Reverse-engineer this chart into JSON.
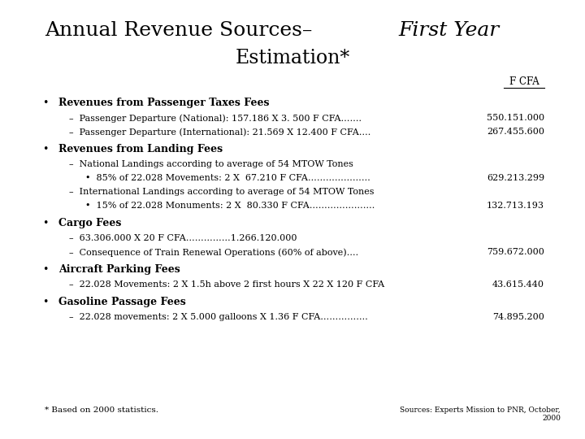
{
  "bg_color": "#ffffff",
  "text_color": "#000000",
  "fcfa_label": "F CFA",
  "sections": [
    {
      "heading": "Revenues from Passenger Taxes Fees",
      "items": [
        {
          "indent": 1,
          "text": "–  Passenger Departure (National): 157.186 X 3. 500 F CFA…….",
          "value": "550.151.000"
        },
        {
          "indent": 1,
          "text": "–  Passenger Departure (International): 21.569 X 12.400 F CFA….",
          "value": "267.455.600"
        }
      ]
    },
    {
      "heading": "Revenues from Landing Fees",
      "items": [
        {
          "indent": 1,
          "text": "–  National Landings according to average of 54 MTOW Tones",
          "value": ""
        },
        {
          "indent": 2,
          "text": "•  85% of 22.028 Movements: 2 X  67.210 F CFA…………………",
          "value": "629.213.299"
        },
        {
          "indent": 1,
          "text": "–  International Landings according to average of 54 MTOW Tones",
          "value": ""
        },
        {
          "indent": 2,
          "text": "•  15% of 22.028 Monuments: 2 X  80.330 F CFA………………….",
          "value": "132.713.193"
        }
      ]
    },
    {
      "heading": "Cargo Fees",
      "items": [
        {
          "indent": 1,
          "text": "–  63.306.000 X 20 F CFA……………1.266.120.000",
          "value": ""
        },
        {
          "indent": 1,
          "text": "–  Consequence of Train Renewal Operations (60% of above)….",
          "value": "759.672.000"
        }
      ]
    },
    {
      "heading": "Aircraft Parking Fees",
      "items": [
        {
          "indent": 1,
          "text": "–  22.028 Movements: 2 X 1.5h above 2 first hours X 22 X 120 F CFA",
          "value": "43.615.440"
        }
      ]
    },
    {
      "heading": "Gasoline Passage Fees",
      "items": [
        {
          "indent": 1,
          "text": "–  22.028 movements: 2 X 5.000 galloons X 1.36 F CFA…………….",
          "value": "74.895.200"
        }
      ]
    }
  ],
  "footnote": "* Based on 2000 statistics.",
  "source": "Sources: Experts Mission to PNR, October,\n2000",
  "title_font_size": 18,
  "heading_font_size": 9,
  "body_font_size": 8,
  "value_font_size": 8,
  "footnote_font_size": 7.5,
  "source_font_size": 6.5
}
